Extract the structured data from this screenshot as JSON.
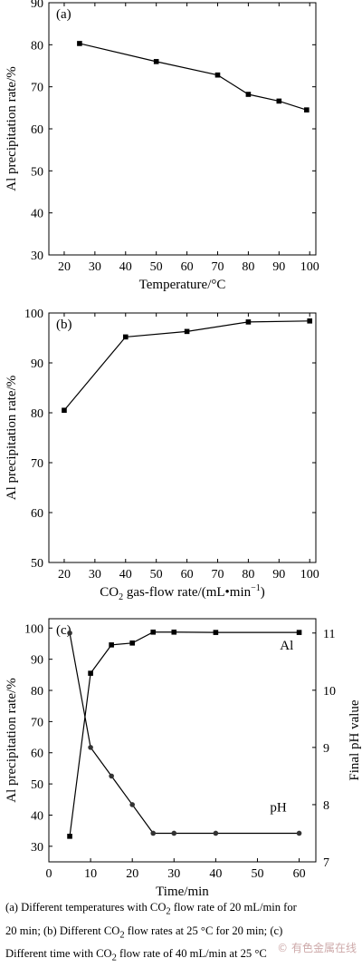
{
  "chart_data": [
    {
      "type": "line",
      "panel_label": "(a)",
      "xlabel": "Temperature/°C",
      "ylabel": "Al precipitation rate/%",
      "xlim": [
        15,
        102
      ],
      "ylim": [
        30,
        90
      ],
      "xticks": [
        20,
        30,
        40,
        50,
        60,
        70,
        80,
        90,
        100
      ],
      "yticks": [
        30,
        40,
        50,
        60,
        70,
        80,
        90
      ],
      "grid": false,
      "series": [
        {
          "x": [
            25,
            50,
            70,
            80,
            90,
            99
          ],
          "y": [
            80.3,
            76.0,
            72.8,
            68.2,
            66.6,
            64.5
          ],
          "marker": "square"
        }
      ]
    },
    {
      "type": "line",
      "panel_label": "(b)",
      "xlabel": "CO2 gas-flow rate/(mL•min−1)",
      "xlabel_parts": {
        "prefix": "CO",
        "subscript": "2",
        "middle": " gas-flow rate/(mL•min",
        "superscript": "−1",
        "suffix": ")"
      },
      "ylabel": "Al precipitation rate/%",
      "xlim": [
        15,
        102
      ],
      "ylim": [
        50,
        100
      ],
      "xticks": [
        20,
        30,
        40,
        50,
        60,
        70,
        80,
        90,
        100
      ],
      "yticks": [
        50,
        60,
        70,
        80,
        90,
        100
      ],
      "grid": false,
      "series": [
        {
          "x": [
            20,
            40,
            60,
            80,
            100
          ],
          "y": [
            80.5,
            95.2,
            96.3,
            98.2,
            98.4
          ],
          "marker": "square"
        }
      ]
    },
    {
      "type": "line",
      "panel_label": "(c)",
      "xlabel": "Time/min",
      "ylabel": "Al precipitation rate/%",
      "ylabel_right": "Final pH value",
      "xlim": [
        0,
        64
      ],
      "ylim": [
        25,
        103
      ],
      "ylim_right": [
        7,
        11.25
      ],
      "xticks": [
        0,
        10,
        20,
        30,
        40,
        50,
        60
      ],
      "yticks": [
        30,
        40,
        50,
        60,
        70,
        80,
        90,
        100
      ],
      "yticks_right": [
        7,
        8,
        9,
        10,
        11
      ],
      "grid": false,
      "series": [
        {
          "name": "Al",
          "axis": "left",
          "marker": "square",
          "x": [
            5,
            10,
            15,
            20,
            25,
            30,
            40,
            60
          ],
          "y": [
            33.2,
            85.5,
            94.6,
            95.2,
            98.7,
            98.7,
            98.6,
            98.6
          ]
        },
        {
          "name": "pH",
          "axis": "right",
          "marker": "circle",
          "x": [
            5,
            10,
            15,
            20,
            25,
            30,
            40,
            60
          ],
          "y": [
            11.0,
            9.0,
            8.5,
            8.0,
            7.5,
            7.5,
            7.5,
            7.5
          ]
        }
      ]
    }
  ],
  "caption": {
    "line1_a": "(a) Different temperatures with CO",
    "line1_sub": "2",
    "line1_b": " flow rate of 20 mL/min for",
    "line2_a": "20 min; (b) Different CO",
    "line2_sub": "2",
    "line2_b": " flow rates at 25 °C for 20 min; (c)",
    "line3_a": "Different time with CO",
    "line3_sub": "2",
    "line3_b": " flow rate of 40 mL/min at 25 °C"
  },
  "watermark": "© 有色金属在线"
}
